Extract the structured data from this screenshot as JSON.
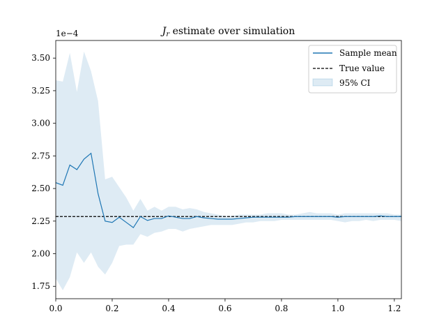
{
  "chart_data": {
    "type": "line",
    "title_main": "J",
    "title_sub": "r",
    "title_rest": " estimate over simulation",
    "offset_label": "1e−4",
    "xlim": [
      0.0,
      1.225
    ],
    "ylim": [
      1.655,
      3.635
    ],
    "xticks": [
      0.0,
      0.2,
      0.4,
      0.6,
      0.8,
      1.0,
      1.2
    ],
    "xtick_labels": [
      "0.0",
      "0.2",
      "0.4",
      "0.6",
      "0.8",
      "1.0",
      "1.2"
    ],
    "yticks": [
      1.75,
      2.0,
      2.25,
      2.5,
      2.75,
      3.0,
      3.25,
      3.5
    ],
    "ytick_labels": [
      "1.75",
      "2.00",
      "2.25",
      "2.50",
      "2.75",
      "3.00",
      "3.25",
      "3.50"
    ],
    "grid": false,
    "legend_position": "top-right",
    "true_value": 2.285,
    "colors": {
      "mean": "#1f77b4",
      "ci": "#1f77b4",
      "true": "#000000"
    },
    "series": [
      {
        "name": "Sample mean",
        "x": [
          0.0,
          0.025,
          0.05,
          0.075,
          0.1,
          0.125,
          0.15,
          0.175,
          0.2,
          0.225,
          0.25,
          0.275,
          0.3,
          0.325,
          0.35,
          0.375,
          0.4,
          0.425,
          0.45,
          0.475,
          0.5,
          0.525,
          0.55,
          0.575,
          0.6,
          0.625,
          0.65,
          0.675,
          0.7,
          0.725,
          0.75,
          0.775,
          0.8,
          0.825,
          0.85,
          0.875,
          0.9,
          0.925,
          0.95,
          0.975,
          1.0,
          1.025,
          1.05,
          1.075,
          1.1,
          1.125,
          1.15,
          1.175,
          1.2,
          1.225
        ],
        "y": [
          2.545,
          2.525,
          2.68,
          2.645,
          2.725,
          2.77,
          2.46,
          2.25,
          2.24,
          2.28,
          2.24,
          2.2,
          2.285,
          2.255,
          2.27,
          2.27,
          2.29,
          2.28,
          2.27,
          2.27,
          2.285,
          2.275,
          2.27,
          2.265,
          2.265,
          2.265,
          2.27,
          2.275,
          2.28,
          2.28,
          2.28,
          2.28,
          2.28,
          2.28,
          2.285,
          2.285,
          2.285,
          2.285,
          2.285,
          2.285,
          2.28,
          2.285,
          2.285,
          2.285,
          2.285,
          2.285,
          2.29,
          2.285,
          2.285,
          2.285
        ]
      },
      {
        "name": "True value",
        "y": 2.285
      },
      {
        "name": "95% CI",
        "x": [
          0.0,
          0.025,
          0.05,
          0.075,
          0.1,
          0.125,
          0.15,
          0.175,
          0.2,
          0.225,
          0.25,
          0.275,
          0.3,
          0.325,
          0.35,
          0.375,
          0.4,
          0.425,
          0.45,
          0.475,
          0.5,
          0.525,
          0.55,
          0.575,
          0.6,
          0.625,
          0.65,
          0.675,
          0.7,
          0.725,
          0.75,
          0.775,
          0.8,
          0.825,
          0.85,
          0.875,
          0.9,
          0.925,
          0.95,
          0.975,
          1.0,
          1.025,
          1.05,
          1.075,
          1.1,
          1.125,
          1.15,
          1.175,
          1.2,
          1.225
        ],
        "upper": [
          3.33,
          3.32,
          3.54,
          3.24,
          3.55,
          3.4,
          3.17,
          2.57,
          2.59,
          2.51,
          2.43,
          2.33,
          2.42,
          2.33,
          2.36,
          2.33,
          2.36,
          2.36,
          2.34,
          2.35,
          2.34,
          2.32,
          2.31,
          2.3,
          2.29,
          2.29,
          2.3,
          2.3,
          2.3,
          2.3,
          2.31,
          2.31,
          2.31,
          2.3,
          2.3,
          2.31,
          2.32,
          2.31,
          2.31,
          2.31,
          2.3,
          2.31,
          2.31,
          2.31,
          2.31,
          2.31,
          2.31,
          2.31,
          2.3,
          2.3
        ],
        "lower": [
          1.81,
          1.72,
          1.82,
          2.01,
          1.93,
          2.01,
          1.9,
          1.84,
          1.93,
          2.06,
          2.07,
          2.07,
          2.15,
          2.13,
          2.16,
          2.17,
          2.19,
          2.19,
          2.17,
          2.19,
          2.2,
          2.21,
          2.22,
          2.22,
          2.22,
          2.22,
          2.23,
          2.24,
          2.24,
          2.25,
          2.25,
          2.25,
          2.26,
          2.26,
          2.26,
          2.26,
          2.26,
          2.26,
          2.26,
          2.26,
          2.25,
          2.24,
          2.25,
          2.25,
          2.26,
          2.25,
          2.26,
          2.26,
          2.26,
          2.25
        ]
      }
    ]
  }
}
